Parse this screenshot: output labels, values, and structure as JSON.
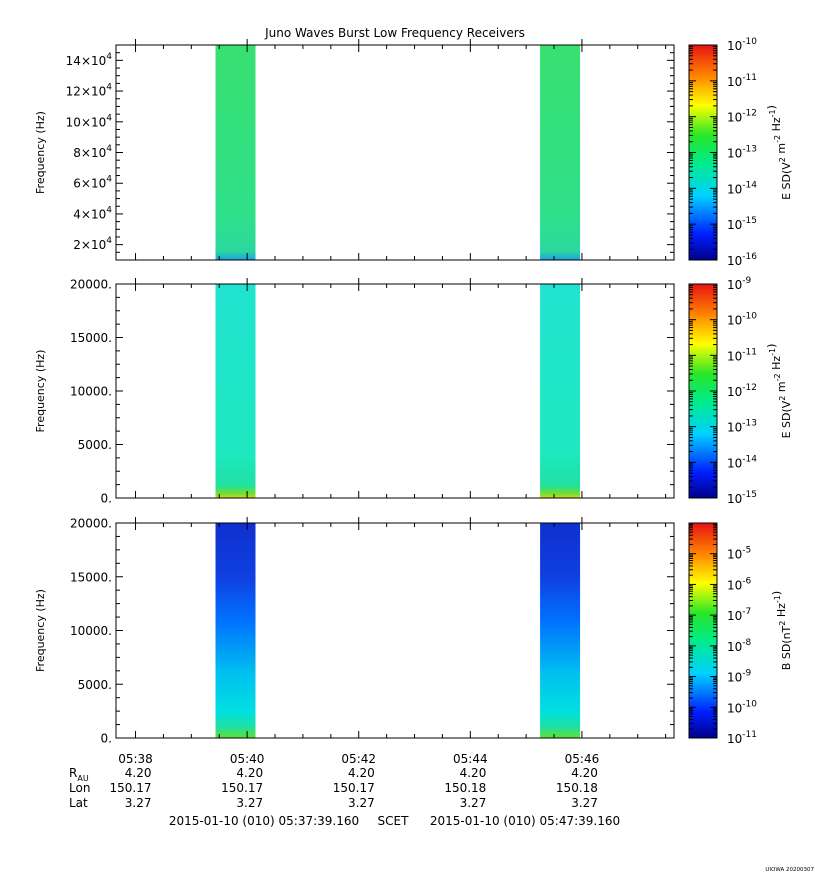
{
  "title": "Juno Waves Burst Low Frequency Receivers",
  "colors": {
    "axis": "#000000",
    "burst_hf_base": "#2fe08a",
    "burst_mf_base": "#1ee8c0",
    "burst_lf_low": "#1040e0"
  },
  "chart_data": [
    {
      "type": "heatmap",
      "panel": "top",
      "ylabel": "Frequency (Hz)",
      "ylim": [
        10000,
        150000
      ],
      "yticks": [
        {
          "v": 20000,
          "mant": "2×10",
          "exp": "4"
        },
        {
          "v": 40000,
          "mant": "4×10",
          "exp": "4"
        },
        {
          "v": 60000,
          "mant": "6×10",
          "exp": "4"
        },
        {
          "v": 80000,
          "mant": "8×10",
          "exp": "4"
        },
        {
          "v": 100000,
          "mant": "10×10",
          "exp": "4"
        },
        {
          "v": 120000,
          "mant": "12×10",
          "exp": "4"
        },
        {
          "v": 140000,
          "mant": "14×10",
          "exp": "4"
        }
      ],
      "colorbar": {
        "label": "E SD(V^2 m^-2 Hz^-1)",
        "log_range": [
          -16,
          -10
        ],
        "ticks": [
          "-16",
          "-15",
          "-14",
          "-13",
          "-12",
          "-11",
          "-10"
        ]
      },
      "bursts": [
        {
          "start": "05:39:26",
          "end": "05:40:09"
        },
        {
          "start": "05:45:15",
          "end": "05:45:58"
        }
      ]
    },
    {
      "type": "heatmap",
      "panel": "middle",
      "ylabel": "Frequency (Hz)",
      "ylim": [
        0,
        20000
      ],
      "yticks": [
        {
          "v": 0,
          "label": "0."
        },
        {
          "v": 5000,
          "label": "5000."
        },
        {
          "v": 10000,
          "label": "10000."
        },
        {
          "v": 15000,
          "label": "15000."
        },
        {
          "v": 20000,
          "label": "20000."
        }
      ],
      "colorbar": {
        "label": "E SD(V^2 m^-2 Hz^-1)",
        "log_range": [
          -15,
          -9
        ],
        "ticks": [
          "-15",
          "-14",
          "-13",
          "-12",
          "-11",
          "-10",
          "-9"
        ]
      },
      "bursts": [
        {
          "start": "05:39:26",
          "end": "05:40:09"
        },
        {
          "start": "05:45:15",
          "end": "05:45:58"
        }
      ]
    },
    {
      "type": "heatmap",
      "panel": "bottom",
      "ylabel": "Frequency (Hz)",
      "ylim": [
        0,
        20000
      ],
      "yticks": [
        {
          "v": 0,
          "label": "0."
        },
        {
          "v": 5000,
          "label": "5000."
        },
        {
          "v": 10000,
          "label": "10000."
        },
        {
          "v": 15000,
          "label": "15000."
        },
        {
          "v": 20000,
          "label": "20000."
        }
      ],
      "colorbar": {
        "label": "B SD(nT^2 Hz^-1)",
        "log_range": [
          -11,
          -4
        ],
        "ticks": [
          "-11",
          "-10",
          "-9",
          "-8",
          "-7",
          "-6",
          "-5"
        ]
      },
      "bursts": [
        {
          "start": "05:39:26",
          "end": "05:40:09"
        },
        {
          "start": "05:45:15",
          "end": "05:45:58"
        }
      ]
    }
  ],
  "x_axis": {
    "range": [
      "05:37:39",
      "05:47:39"
    ],
    "ticks": [
      "05:38",
      "05:40",
      "05:42",
      "05:44",
      "05:46"
    ],
    "ephemeris": [
      {
        "label": "R",
        "sub": "AU",
        "values": [
          "4.20",
          "4.20",
          "4.20",
          "4.20",
          "4.20"
        ]
      },
      {
        "label": "Lon",
        "values": [
          "150.17",
          "150.17",
          "150.17",
          "150.18",
          "150.18"
        ]
      },
      {
        "label": "Lat",
        "values": [
          "3.27",
          "3.27",
          "3.27",
          "3.27",
          "3.27"
        ]
      }
    ],
    "time_start": "2015-01-10 (010) 05:37:39.160",
    "scet": "SCET",
    "time_end": "2015-01-10 (010) 05:47:39.160"
  },
  "footer": "UIOWA 20200307"
}
